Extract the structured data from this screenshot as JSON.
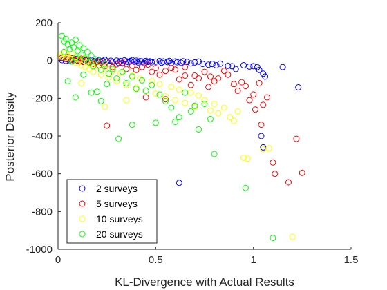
{
  "chart_data": {
    "type": "scatter",
    "title": "",
    "xlabel": "KL-Divergence with Actual Results",
    "ylabel": "Posterior Density",
    "xlim": [
      0,
      1.5
    ],
    "ylim": [
      -1000,
      200
    ],
    "xticks": [
      0,
      0.5,
      1,
      1.5
    ],
    "xtick_labels": [
      "0",
      "0.5",
      "1",
      "1.5"
    ],
    "yticks": [
      200,
      0,
      -200,
      -400,
      -600,
      -800,
      -1000
    ],
    "ytick_labels": [
      "200",
      "0",
      "-200",
      "-400",
      "-600",
      "-800",
      "-1000"
    ],
    "grid": false,
    "legend_position": "bottom-left",
    "marker": "open-circle",
    "series": [
      {
        "name": "2 surveys",
        "color": "#0000ff",
        "points": [
          [
            0.02,
            2
          ],
          [
            0.03,
            12
          ],
          [
            0.04,
            -2
          ],
          [
            0.05,
            6
          ],
          [
            0.06,
            1
          ],
          [
            0.07,
            3
          ],
          [
            0.08,
            -4
          ],
          [
            0.09,
            8
          ],
          [
            0.1,
            -1
          ],
          [
            0.11,
            4
          ],
          [
            0.12,
            0
          ],
          [
            0.13,
            -6
          ],
          [
            0.14,
            2
          ],
          [
            0.15,
            5
          ],
          [
            0.16,
            -8
          ],
          [
            0.17,
            3
          ],
          [
            0.18,
            -2
          ],
          [
            0.19,
            6
          ],
          [
            0.2,
            -3
          ],
          [
            0.21,
            1
          ],
          [
            0.22,
            -10
          ],
          [
            0.23,
            -2
          ],
          [
            0.24,
            4
          ],
          [
            0.25,
            -5
          ],
          [
            0.27,
            -1
          ],
          [
            0.28,
            -7
          ],
          [
            0.3,
            0
          ],
          [
            0.31,
            -12
          ],
          [
            0.32,
            -3
          ],
          [
            0.33,
            -15
          ],
          [
            0.34,
            1
          ],
          [
            0.35,
            -4
          ],
          [
            0.36,
            -8
          ],
          [
            0.37,
            -2
          ],
          [
            0.38,
            2
          ],
          [
            0.39,
            -6
          ],
          [
            0.4,
            -1
          ],
          [
            0.41,
            -10
          ],
          [
            0.42,
            -3
          ],
          [
            0.43,
            -5
          ],
          [
            0.44,
            -14
          ],
          [
            0.45,
            -2
          ],
          [
            0.46,
            -7
          ],
          [
            0.47,
            -4
          ],
          [
            0.48,
            -9
          ],
          [
            0.5,
            -6
          ],
          [
            0.52,
            -3
          ],
          [
            0.53,
            -11
          ],
          [
            0.54,
            -5
          ],
          [
            0.56,
            -8
          ],
          [
            0.57,
            -2
          ],
          [
            0.58,
            -13
          ],
          [
            0.6,
            -5
          ],
          [
            0.61,
            -9
          ],
          [
            0.63,
            -12
          ],
          [
            0.64,
            -4
          ],
          [
            0.66,
            -7
          ],
          [
            0.68,
            -15
          ],
          [
            0.7,
            -10
          ],
          [
            0.72,
            -6
          ],
          [
            0.74,
            -18
          ],
          [
            0.77,
            -22
          ],
          [
            0.79,
            -18
          ],
          [
            0.81,
            -25
          ],
          [
            0.83,
            -17
          ],
          [
            0.87,
            -28
          ],
          [
            0.89,
            -30
          ],
          [
            0.91,
            -45
          ],
          [
            0.95,
            -25
          ],
          [
            0.98,
            -32
          ],
          [
            1.0,
            -30
          ],
          [
            1.02,
            -35
          ],
          [
            1.03,
            -50
          ],
          [
            1.05,
            -70
          ],
          [
            1.06,
            -85
          ],
          [
            1.15,
            -35
          ],
          [
            1.23,
            -142
          ],
          [
            0.62,
            -648
          ],
          [
            1.04,
            -400
          ],
          [
            1.05,
            -460
          ]
        ]
      },
      {
        "name": "5 surveys",
        "color": "#ff0000",
        "points": [
          [
            0.02,
            14
          ],
          [
            0.04,
            8
          ],
          [
            0.05,
            20
          ],
          [
            0.07,
            12
          ],
          [
            0.08,
            2
          ],
          [
            0.09,
            16
          ],
          [
            0.1,
            5
          ],
          [
            0.11,
            -4
          ],
          [
            0.12,
            10
          ],
          [
            0.13,
            -8
          ],
          [
            0.15,
            4
          ],
          [
            0.16,
            -12
          ],
          [
            0.17,
            -2
          ],
          [
            0.18,
            -18
          ],
          [
            0.2,
            -6
          ],
          [
            0.21,
            -25
          ],
          [
            0.22,
            -10
          ],
          [
            0.24,
            -30
          ],
          [
            0.26,
            -15
          ],
          [
            0.28,
            -35
          ],
          [
            0.3,
            -20
          ],
          [
            0.33,
            -12
          ],
          [
            0.35,
            -45
          ],
          [
            0.38,
            -28
          ],
          [
            0.4,
            -50
          ],
          [
            0.43,
            -35
          ],
          [
            0.46,
            -22
          ],
          [
            0.48,
            -60
          ],
          [
            0.5,
            -40
          ],
          [
            0.52,
            -75
          ],
          [
            0.55,
            -55
          ],
          [
            0.58,
            -40
          ],
          [
            0.6,
            -48
          ],
          [
            0.62,
            -100
          ],
          [
            0.65,
            -35
          ],
          [
            0.68,
            -130
          ],
          [
            0.7,
            -80
          ],
          [
            0.72,
            -95
          ],
          [
            0.75,
            -60
          ],
          [
            0.77,
            -140
          ],
          [
            0.78,
            -85
          ],
          [
            0.8,
            -110
          ],
          [
            0.82,
            -95
          ],
          [
            0.85,
            -55
          ],
          [
            0.87,
            -75
          ],
          [
            0.9,
            -125
          ],
          [
            0.92,
            -160
          ],
          [
            0.94,
            -115
          ],
          [
            0.96,
            -135
          ],
          [
            0.98,
            -210
          ],
          [
            1.0,
            -180
          ],
          [
            1.01,
            -260
          ],
          [
            1.03,
            -120
          ],
          [
            1.04,
            -340
          ],
          [
            1.05,
            -235
          ],
          [
            1.07,
            -195
          ],
          [
            1.1,
            -540
          ],
          [
            1.11,
            -600
          ],
          [
            1.18,
            -645
          ],
          [
            1.22,
            -415
          ],
          [
            1.25,
            -595
          ],
          [
            0.25,
            -345
          ],
          [
            0.45,
            -195
          ],
          [
            0.55,
            -205
          ],
          [
            0.65,
            -80
          ]
        ]
      },
      {
        "name": "10 surveys",
        "color": "#ffff00",
        "points": [
          [
            0.01,
            30
          ],
          [
            0.02,
            22
          ],
          [
            0.03,
            40
          ],
          [
            0.04,
            15
          ],
          [
            0.05,
            25
          ],
          [
            0.06,
            10
          ],
          [
            0.07,
            32
          ],
          [
            0.08,
            -5
          ],
          [
            0.09,
            18
          ],
          [
            0.1,
            -15
          ],
          [
            0.11,
            5
          ],
          [
            0.12,
            -25
          ],
          [
            0.13,
            12
          ],
          [
            0.14,
            -35
          ],
          [
            0.15,
            -8
          ],
          [
            0.16,
            -45
          ],
          [
            0.17,
            -18
          ],
          [
            0.18,
            -60
          ],
          [
            0.2,
            -30
          ],
          [
            0.22,
            -75
          ],
          [
            0.24,
            -40
          ],
          [
            0.26,
            -90
          ],
          [
            0.28,
            -55
          ],
          [
            0.3,
            -110
          ],
          [
            0.32,
            -65
          ],
          [
            0.35,
            -130
          ],
          [
            0.38,
            -80
          ],
          [
            0.4,
            -145
          ],
          [
            0.42,
            -95
          ],
          [
            0.45,
            -160
          ],
          [
            0.48,
            -110
          ],
          [
            0.5,
            -175
          ],
          [
            0.52,
            -125
          ],
          [
            0.55,
            -190
          ],
          [
            0.58,
            -140
          ],
          [
            0.6,
            -210
          ],
          [
            0.62,
            -155
          ],
          [
            0.65,
            -225
          ],
          [
            0.68,
            -170
          ],
          [
            0.7,
            -245
          ],
          [
            0.72,
            -185
          ],
          [
            0.75,
            -210
          ],
          [
            0.78,
            -265
          ],
          [
            0.8,
            -230
          ],
          [
            0.82,
            -280
          ],
          [
            0.85,
            -250
          ],
          [
            0.88,
            -300
          ],
          [
            0.9,
            -320
          ],
          [
            0.92,
            -270
          ],
          [
            0.95,
            -515
          ],
          [
            0.97,
            -520
          ],
          [
            1.05,
            -470
          ],
          [
            1.08,
            -465
          ],
          [
            1.2,
            -935
          ],
          [
            0.24,
            -245
          ],
          [
            0.12,
            -120
          ],
          [
            0.35,
            -210
          ]
        ]
      },
      {
        "name": "20 surveys",
        "color": "#00ff00",
        "points": [
          [
            0.02,
            130
          ],
          [
            0.03,
            100
          ],
          [
            0.04,
            115
          ],
          [
            0.05,
            85
          ],
          [
            0.06,
            60
          ],
          [
            0.07,
            95
          ],
          [
            0.08,
            70
          ],
          [
            0.09,
            110
          ],
          [
            0.1,
            50
          ],
          [
            0.11,
            80
          ],
          [
            0.12,
            30
          ],
          [
            0.13,
            65
          ],
          [
            0.14,
            10
          ],
          [
            0.15,
            45
          ],
          [
            0.16,
            -10
          ],
          [
            0.17,
            25
          ],
          [
            0.18,
            -30
          ],
          [
            0.2,
            5
          ],
          [
            0.22,
            -50
          ],
          [
            0.24,
            -20
          ],
          [
            0.26,
            -70
          ],
          [
            0.28,
            -45
          ],
          [
            0.3,
            -95
          ],
          [
            0.33,
            -60
          ],
          [
            0.35,
            -120
          ],
          [
            0.38,
            -85
          ],
          [
            0.4,
            -150
          ],
          [
            0.43,
            -105
          ],
          [
            0.45,
            -160
          ],
          [
            0.48,
            -130
          ],
          [
            0.5,
            -330
          ],
          [
            0.52,
            -180
          ],
          [
            0.55,
            -215
          ],
          [
            0.58,
            -250
          ],
          [
            0.6,
            -325
          ],
          [
            0.62,
            -300
          ],
          [
            0.65,
            -170
          ],
          [
            0.68,
            -270
          ],
          [
            0.7,
            -240
          ],
          [
            0.72,
            -365
          ],
          [
            0.75,
            -230
          ],
          [
            0.78,
            -310
          ],
          [
            0.8,
            -495
          ],
          [
            0.96,
            -675
          ],
          [
            1.1,
            -940
          ],
          [
            0.05,
            -110
          ],
          [
            0.09,
            -195
          ],
          [
            0.17,
            -170
          ],
          [
            0.2,
            -165
          ],
          [
            0.22,
            -215
          ],
          [
            0.25,
            -125
          ],
          [
            0.31,
            -415
          ],
          [
            0.38,
            -340
          ],
          [
            0.07,
            -5
          ],
          [
            0.09,
            15
          ],
          [
            0.03,
            45
          ],
          [
            0.13,
            -75
          ]
        ]
      }
    ]
  }
}
